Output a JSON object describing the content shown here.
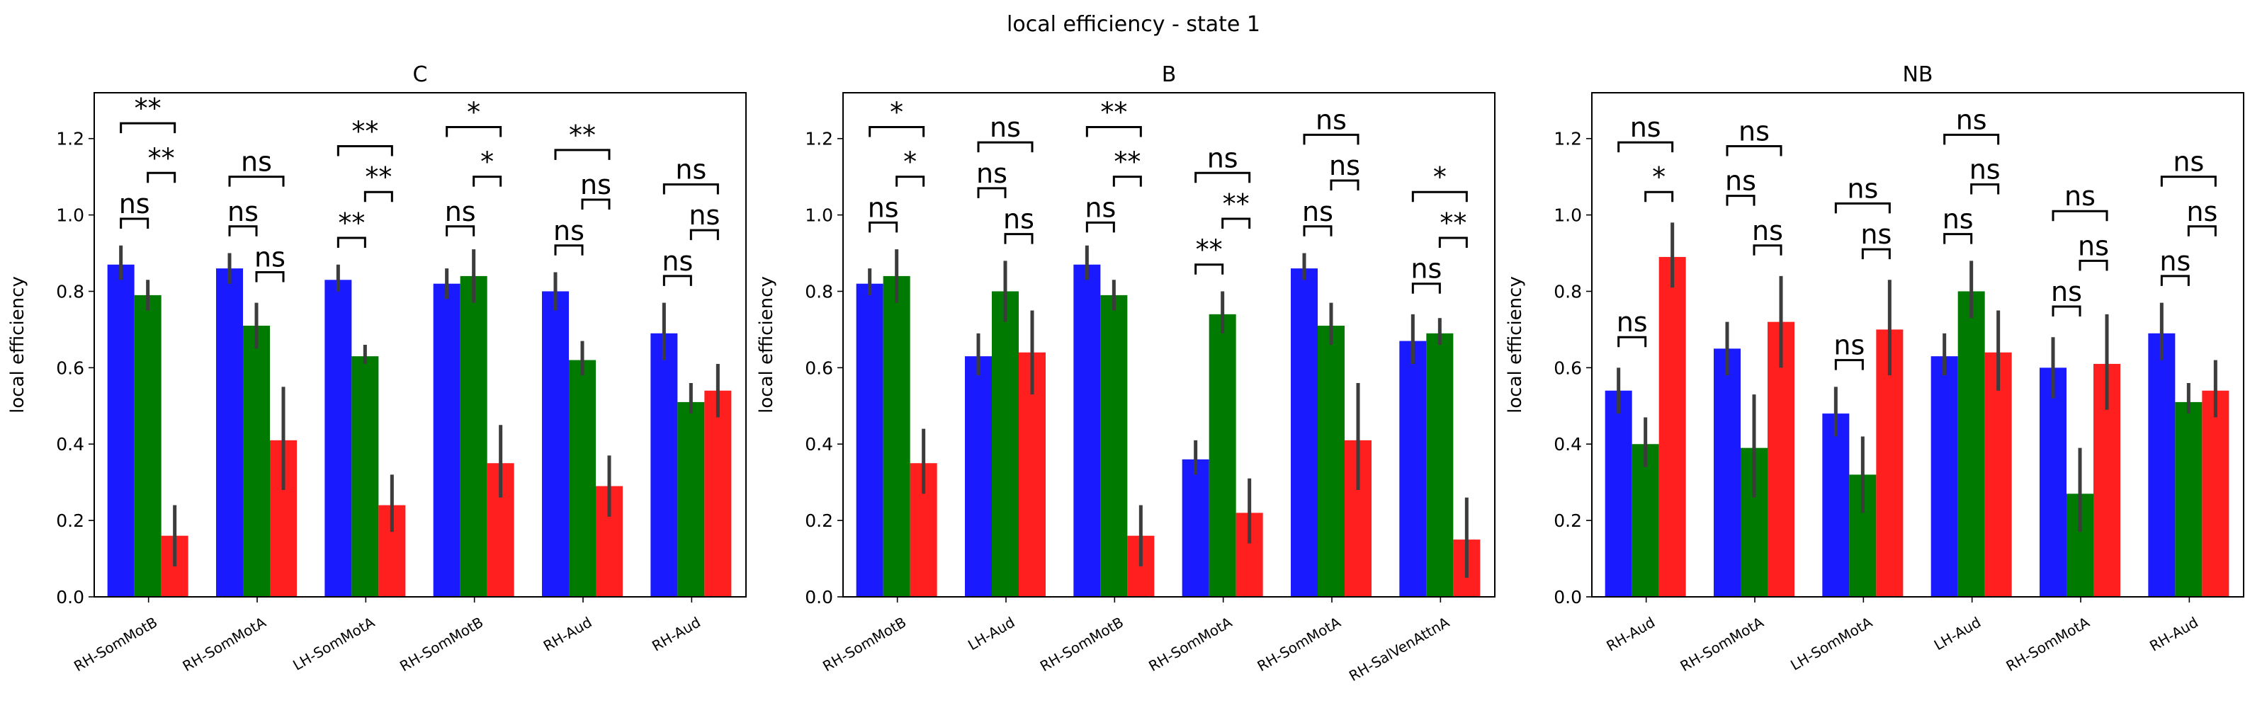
{
  "figure": {
    "suptitle": "local efficiency - state 1"
  },
  "colors": {
    "series1": "#1a1aff",
    "series2": "#007a00",
    "series3": "#ff1f1f",
    "errorbar": "#3c3c3c"
  },
  "chart_data": [
    {
      "type": "bar",
      "title": "C",
      "ylabel": "local efficiency",
      "xlabel": "",
      "ylim": [
        0,
        1.32
      ],
      "yticks": [
        "0.0",
        "0.2",
        "0.4",
        "0.6",
        "0.8",
        "1.0",
        "1.2"
      ],
      "categories": [
        "RH-SomMotB",
        "RH-SomMotA",
        "LH-SomMotA",
        "RH-SomMotB",
        "RH-Aud",
        "RH-Aud"
      ],
      "series": [
        {
          "values": [
            0.87,
            0.86,
            0.83,
            0.82,
            0.8,
            0.69
          ],
          "err_low": [
            0.83,
            0.82,
            0.8,
            0.78,
            0.75,
            0.62
          ],
          "err_high": [
            0.92,
            0.9,
            0.87,
            0.86,
            0.85,
            0.77
          ]
        },
        {
          "values": [
            0.79,
            0.71,
            0.63,
            0.84,
            0.62,
            0.51
          ],
          "err_low": [
            0.75,
            0.65,
            0.61,
            0.77,
            0.58,
            0.48
          ],
          "err_high": [
            0.83,
            0.77,
            0.66,
            0.91,
            0.67,
            0.56
          ]
        },
        {
          "values": [
            0.16,
            0.41,
            0.24,
            0.35,
            0.29,
            0.54
          ],
          "err_low": [
            0.08,
            0.28,
            0.17,
            0.26,
            0.21,
            0.47
          ],
          "err_high": [
            0.24,
            0.55,
            0.32,
            0.45,
            0.37,
            0.61
          ]
        }
      ],
      "annotations": [
        {
          "cat": 0,
          "s": [
            0,
            1
          ],
          "y": 0.99,
          "label": "ns"
        },
        {
          "cat": 0,
          "s": [
            1,
            2
          ],
          "y": 1.11,
          "label": "**"
        },
        {
          "cat": 0,
          "s": [
            0,
            2
          ],
          "y": 1.24,
          "label": "**"
        },
        {
          "cat": 1,
          "s": [
            0,
            1
          ],
          "y": 0.97,
          "label": "ns"
        },
        {
          "cat": 1,
          "s": [
            1,
            2
          ],
          "y": 0.85,
          "label": "ns"
        },
        {
          "cat": 1,
          "s": [
            0,
            2
          ],
          "y": 1.1,
          "label": "ns"
        },
        {
          "cat": 2,
          "s": [
            0,
            1
          ],
          "y": 0.94,
          "label": "**"
        },
        {
          "cat": 2,
          "s": [
            1,
            2
          ],
          "y": 1.06,
          "label": "**"
        },
        {
          "cat": 2,
          "s": [
            0,
            2
          ],
          "y": 1.18,
          "label": "**"
        },
        {
          "cat": 3,
          "s": [
            0,
            1
          ],
          "y": 0.97,
          "label": "ns"
        },
        {
          "cat": 3,
          "s": [
            1,
            2
          ],
          "y": 1.1,
          "label": "*"
        },
        {
          "cat": 3,
          "s": [
            0,
            2
          ],
          "y": 1.23,
          "label": "*"
        },
        {
          "cat": 4,
          "s": [
            0,
            1
          ],
          "y": 0.92,
          "label": "ns"
        },
        {
          "cat": 4,
          "s": [
            1,
            2
          ],
          "y": 1.04,
          "label": "ns"
        },
        {
          "cat": 4,
          "s": [
            0,
            2
          ],
          "y": 1.17,
          "label": "**"
        },
        {
          "cat": 5,
          "s": [
            0,
            1
          ],
          "y": 0.84,
          "label": "ns"
        },
        {
          "cat": 5,
          "s": [
            1,
            2
          ],
          "y": 0.96,
          "label": "ns"
        },
        {
          "cat": 5,
          "s": [
            0,
            2
          ],
          "y": 1.08,
          "label": "ns"
        }
      ]
    },
    {
      "type": "bar",
      "title": "B",
      "ylabel": "local efficiency",
      "xlabel": "",
      "ylim": [
        0,
        1.32
      ],
      "yticks": [
        "0.0",
        "0.2",
        "0.4",
        "0.6",
        "0.8",
        "1.0",
        "1.2"
      ],
      "categories": [
        "RH-SomMotB",
        "LH-Aud",
        "RH-SomMotB",
        "RH-SomMotA",
        "RH-SomMotA",
        "RH-SalVenAttnA"
      ],
      "series": [
        {
          "values": [
            0.82,
            0.63,
            0.87,
            0.36,
            0.86,
            0.67
          ],
          "err_low": [
            0.79,
            0.58,
            0.83,
            0.32,
            0.83,
            0.61
          ],
          "err_high": [
            0.86,
            0.69,
            0.92,
            0.41,
            0.9,
            0.74
          ]
        },
        {
          "values": [
            0.84,
            0.8,
            0.79,
            0.74,
            0.71,
            0.69
          ],
          "err_low": [
            0.77,
            0.72,
            0.75,
            0.69,
            0.66,
            0.66
          ],
          "err_high": [
            0.91,
            0.88,
            0.83,
            0.8,
            0.77,
            0.73
          ]
        },
        {
          "values": [
            0.35,
            0.64,
            0.16,
            0.22,
            0.41,
            0.15
          ],
          "err_low": [
            0.27,
            0.53,
            0.08,
            0.14,
            0.28,
            0.05
          ],
          "err_high": [
            0.44,
            0.75,
            0.24,
            0.31,
            0.56,
            0.26
          ]
        }
      ],
      "annotations": [
        {
          "cat": 0,
          "s": [
            0,
            1
          ],
          "y": 0.98,
          "label": "ns"
        },
        {
          "cat": 0,
          "s": [
            1,
            2
          ],
          "y": 1.1,
          "label": "*"
        },
        {
          "cat": 0,
          "s": [
            0,
            2
          ],
          "y": 1.23,
          "label": "*"
        },
        {
          "cat": 1,
          "s": [
            0,
            1
          ],
          "y": 1.07,
          "label": "ns"
        },
        {
          "cat": 1,
          "s": [
            1,
            2
          ],
          "y": 0.95,
          "label": "ns"
        },
        {
          "cat": 1,
          "s": [
            0,
            2
          ],
          "y": 1.19,
          "label": "ns"
        },
        {
          "cat": 2,
          "s": [
            0,
            1
          ],
          "y": 0.98,
          "label": "ns"
        },
        {
          "cat": 2,
          "s": [
            1,
            2
          ],
          "y": 1.1,
          "label": "**"
        },
        {
          "cat": 2,
          "s": [
            0,
            2
          ],
          "y": 1.23,
          "label": "**"
        },
        {
          "cat": 3,
          "s": [
            0,
            1
          ],
          "y": 0.87,
          "label": "**"
        },
        {
          "cat": 3,
          "s": [
            1,
            2
          ],
          "y": 0.99,
          "label": "**"
        },
        {
          "cat": 3,
          "s": [
            0,
            2
          ],
          "y": 1.11,
          "label": "ns"
        },
        {
          "cat": 4,
          "s": [
            0,
            1
          ],
          "y": 0.97,
          "label": "ns"
        },
        {
          "cat": 4,
          "s": [
            1,
            2
          ],
          "y": 1.09,
          "label": "ns"
        },
        {
          "cat": 4,
          "s": [
            0,
            2
          ],
          "y": 1.21,
          "label": "ns"
        },
        {
          "cat": 5,
          "s": [
            0,
            1
          ],
          "y": 0.82,
          "label": "ns"
        },
        {
          "cat": 5,
          "s": [
            1,
            2
          ],
          "y": 0.94,
          "label": "**"
        },
        {
          "cat": 5,
          "s": [
            0,
            2
          ],
          "y": 1.06,
          "label": "*"
        }
      ]
    },
    {
      "type": "bar",
      "title": "NB",
      "ylabel": "local efficiency",
      "xlabel": "",
      "ylim": [
        0,
        1.32
      ],
      "yticks": [
        "0.0",
        "0.2",
        "0.4",
        "0.6",
        "0.8",
        "1.0",
        "1.2"
      ],
      "categories": [
        "RH-Aud",
        "RH-SomMotA",
        "LH-SomMotA",
        "LH-Aud",
        "RH-SomMotA",
        "RH-Aud"
      ],
      "series": [
        {
          "values": [
            0.54,
            0.65,
            0.48,
            0.63,
            0.6,
            0.69
          ],
          "err_low": [
            0.48,
            0.58,
            0.42,
            0.58,
            0.52,
            0.62
          ],
          "err_high": [
            0.6,
            0.72,
            0.55,
            0.69,
            0.68,
            0.77
          ]
        },
        {
          "values": [
            0.4,
            0.39,
            0.32,
            0.8,
            0.27,
            0.51
          ],
          "err_low": [
            0.34,
            0.26,
            0.22,
            0.73,
            0.17,
            0.48
          ],
          "err_high": [
            0.47,
            0.53,
            0.42,
            0.88,
            0.39,
            0.56
          ]
        },
        {
          "values": [
            0.89,
            0.72,
            0.7,
            0.64,
            0.61,
            0.54
          ],
          "err_low": [
            0.81,
            0.6,
            0.58,
            0.54,
            0.49,
            0.47
          ],
          "err_high": [
            0.98,
            0.84,
            0.83,
            0.75,
            0.74,
            0.62
          ]
        }
      ],
      "annotations": [
        {
          "cat": 0,
          "s": [
            0,
            1
          ],
          "y": 0.68,
          "label": "ns"
        },
        {
          "cat": 0,
          "s": [
            1,
            2
          ],
          "y": 1.06,
          "label": "*"
        },
        {
          "cat": 0,
          "s": [
            0,
            2
          ],
          "y": 1.19,
          "label": "ns"
        },
        {
          "cat": 1,
          "s": [
            0,
            1
          ],
          "y": 1.05,
          "label": "ns"
        },
        {
          "cat": 1,
          "s": [
            1,
            2
          ],
          "y": 0.92,
          "label": "ns"
        },
        {
          "cat": 1,
          "s": [
            0,
            2
          ],
          "y": 1.18,
          "label": "ns"
        },
        {
          "cat": 2,
          "s": [
            0,
            1
          ],
          "y": 0.62,
          "label": "ns"
        },
        {
          "cat": 2,
          "s": [
            1,
            2
          ],
          "y": 0.91,
          "label": "ns"
        },
        {
          "cat": 2,
          "s": [
            0,
            2
          ],
          "y": 1.03,
          "label": "ns"
        },
        {
          "cat": 3,
          "s": [
            0,
            1
          ],
          "y": 0.95,
          "label": "ns"
        },
        {
          "cat": 3,
          "s": [
            1,
            2
          ],
          "y": 1.08,
          "label": "ns"
        },
        {
          "cat": 3,
          "s": [
            0,
            2
          ],
          "y": 1.21,
          "label": "ns"
        },
        {
          "cat": 4,
          "s": [
            0,
            1
          ],
          "y": 0.76,
          "label": "ns"
        },
        {
          "cat": 4,
          "s": [
            1,
            2
          ],
          "y": 0.88,
          "label": "ns"
        },
        {
          "cat": 4,
          "s": [
            0,
            2
          ],
          "y": 1.01,
          "label": "ns"
        },
        {
          "cat": 5,
          "s": [
            0,
            1
          ],
          "y": 0.84,
          "label": "ns"
        },
        {
          "cat": 5,
          "s": [
            1,
            2
          ],
          "y": 0.97,
          "label": "ns"
        },
        {
          "cat": 5,
          "s": [
            0,
            2
          ],
          "y": 1.1,
          "label": "ns"
        }
      ]
    }
  ]
}
